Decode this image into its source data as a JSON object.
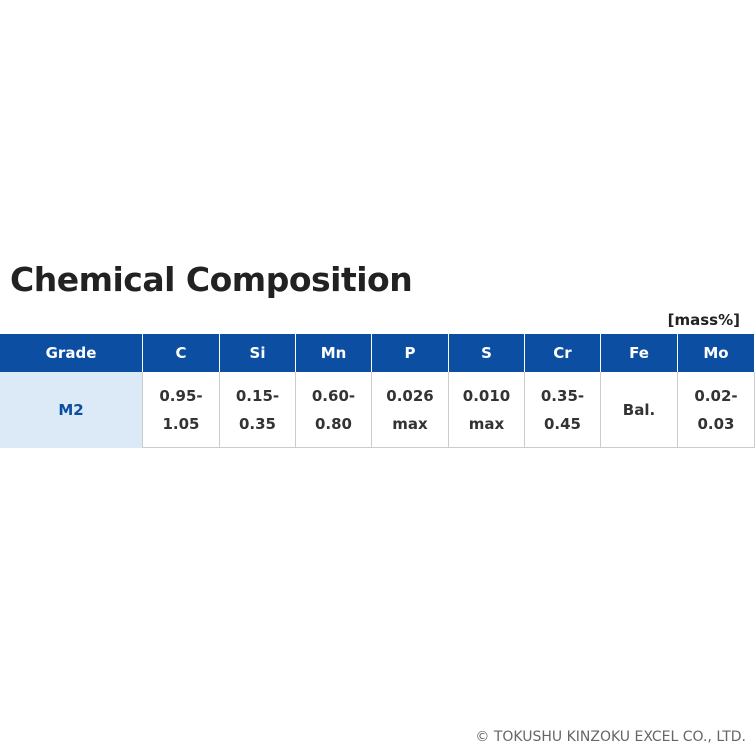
{
  "title": "Chemical Composition",
  "unit": "[mass%]",
  "table": {
    "header": [
      "Grade",
      "C",
      "Si",
      "Mn",
      "P",
      "S",
      "Cr",
      "Fe",
      "Mo"
    ],
    "rows": [
      [
        [
          "M2"
        ],
        [
          "0.95-",
          "1.05"
        ],
        [
          "0.15-",
          "0.35"
        ],
        [
          "0.60-",
          "0.80"
        ],
        [
          "0.026",
          "max"
        ],
        [
          "0.010",
          "max"
        ],
        [
          "0.35-",
          "0.45"
        ],
        [
          "Bal."
        ],
        [
          "0.02-",
          "0.03"
        ]
      ]
    ]
  },
  "footer": "© TOKUSHU KINZOKU EXCEL CO., LTD."
}
